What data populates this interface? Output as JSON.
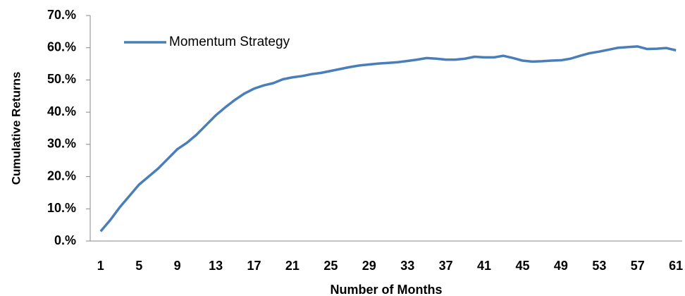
{
  "chart_data": {
    "type": "line",
    "y_label": "Cumulative Returns",
    "x_label": "Number of Months",
    "categories": [
      1,
      null,
      null,
      null,
      5,
      null,
      null,
      null,
      9,
      null,
      null,
      null,
      13,
      null,
      null,
      null,
      17,
      null,
      null,
      null,
      21,
      null,
      null,
      null,
      25,
      null,
      null,
      null,
      29,
      null,
      null,
      null,
      33,
      null,
      null,
      null,
      37,
      null,
      null,
      null,
      41,
      null,
      null,
      null,
      45,
      null,
      null,
      null,
      49,
      null,
      null,
      null,
      53,
      null,
      null,
      null,
      57,
      null,
      null,
      null,
      61
    ],
    "series": [
      {
        "name": "Momentum Strategy",
        "color": "#4a7ebb",
        "values": [
          3,
          6.5,
          10.5,
          14,
          17.5,
          20,
          22.5,
          25.5,
          28.5,
          30.5,
          33,
          36,
          39,
          41.5,
          43.8,
          45.8,
          47.3,
          48.3,
          49,
          50.2,
          50.8,
          51.2,
          51.8,
          52.2,
          52.8,
          53.4,
          54,
          54.5,
          54.8,
          55.1,
          55.3,
          55.5,
          55.9,
          56.3,
          56.8,
          56.6,
          56.3,
          56.3,
          56.6,
          57.2,
          57,
          57,
          57.5,
          56.8,
          56,
          55.7,
          55.8,
          56,
          56.1,
          56.6,
          57.5,
          58.3,
          58.8,
          59.4,
          60,
          60.2,
          60.4,
          59.6,
          59.7,
          59.9,
          59.2
        ]
      }
    ],
    "ylim": [
      0,
      70
    ],
    "yticks": [
      {
        "value": 0,
        "label": "0.%"
      },
      {
        "value": 10,
        "label": "10.%"
      },
      {
        "value": 20,
        "label": "20.%"
      },
      {
        "value": 30,
        "label": "30.%"
      },
      {
        "value": 40,
        "label": "40.%"
      },
      {
        "value": 50,
        "label": "50.%"
      },
      {
        "value": 60,
        "label": "60.%"
      },
      {
        "value": 70,
        "label": "70.%"
      }
    ],
    "legend": "top-left"
  }
}
